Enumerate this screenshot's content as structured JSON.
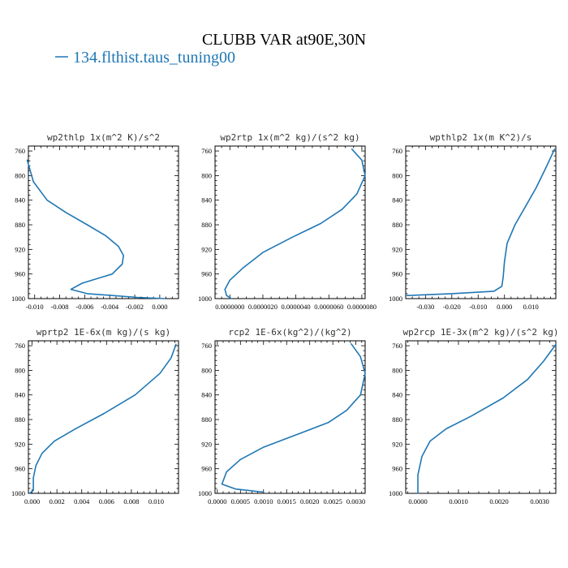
{
  "figure": {
    "title": "CLUBB VAR at90E,30N",
    "legend_label": "134.flthist.taus_tuning00",
    "series_color": "#1f77b4"
  },
  "chart_data": [
    {
      "type": "line",
      "title": "wp2thlp  1x(m^2 K)/s^2",
      "x_ticks": [
        "-0.010",
        "-0.008",
        "-0.006",
        "-0.004",
        "-0.002",
        "0.000"
      ],
      "x_tick_values": [
        -0.01,
        -0.008,
        -0.006,
        -0.004,
        -0.002,
        0.0
      ],
      "xlim": [
        -0.0105,
        0.0015
      ],
      "y_ticks": [
        "760",
        "800",
        "840",
        "880",
        "920",
        "960",
        "1000"
      ],
      "ylim": [
        1000,
        752
      ],
      "series": [
        {
          "x": [
            0.0004,
            -0.0018,
            -0.0058,
            -0.0071,
            -0.0062,
            -0.0038,
            -0.003,
            -0.0029,
            -0.0033,
            -0.0043,
            -0.0058,
            -0.0075,
            -0.009,
            -0.0101,
            -0.0106
          ],
          "y": [
            1000,
            998,
            992,
            985,
            975,
            960,
            944,
            930,
            915,
            898,
            880,
            860,
            840,
            810,
            775
          ]
        }
      ]
    },
    {
      "type": "line",
      "title": "wp2rtp  1x(m^2 kg)/(s^2 kg)",
      "x_ticks": [
        "0.0000000",
        "0.0000020",
        "0.0000040",
        "0.0000060",
        "0.0000080"
      ],
      "x_tick_values": [
        0.0,
        2e-06,
        4e-06,
        6e-06,
        8e-06
      ],
      "xlim": [
        -9e-07,
        8.2e-06
      ],
      "y_ticks": [
        "760",
        "800",
        "840",
        "880",
        "920",
        "960",
        "1000"
      ],
      "ylim": [
        1000,
        752
      ],
      "series": [
        {
          "x": [
            1e-07,
            -2e-07,
            -3e-07,
            0.0,
            8e-07,
            2e-06,
            3.8e-06,
            5.5e-06,
            6.8e-06,
            7.7e-06,
            8.2e-06,
            8e-06,
            7.4e-06
          ],
          "y": [
            1000,
            995,
            985,
            970,
            950,
            925,
            900,
            878,
            855,
            830,
            800,
            775,
            757
          ]
        }
      ]
    },
    {
      "type": "line",
      "title": "wpthlp2  1x(m K^2)/s",
      "x_ticks": [
        "-0.030",
        "-0.020",
        "-0.010",
        "0.000",
        "0.010"
      ],
      "x_tick_values": [
        -0.03,
        -0.02,
        -0.01,
        0.0,
        0.01
      ],
      "xlim": [
        -0.0375,
        0.0195
      ],
      "y_ticks": [
        "760",
        "800",
        "840",
        "880",
        "920",
        "960",
        "1000"
      ],
      "ylim": [
        1000,
        752
      ],
      "series": [
        {
          "x": [
            -0.037,
            -0.02,
            -0.004,
            -0.001,
            -0.0005,
            0.0,
            0.001,
            0.004,
            0.008,
            0.012,
            0.016,
            0.019
          ],
          "y": [
            995,
            992,
            988,
            980,
            965,
            940,
            910,
            880,
            850,
            820,
            785,
            757
          ]
        }
      ]
    },
    {
      "type": "line",
      "title": "wprtp2  1E-6x(m kg)/(s kg)",
      "x_ticks": [
        "0.000",
        "0.002",
        "0.004",
        "0.006",
        "0.008",
        "0.010"
      ],
      "x_tick_values": [
        0.0,
        0.002,
        0.004,
        0.006,
        0.008,
        0.01
      ],
      "xlim": [
        -0.0003,
        0.0118
      ],
      "y_ticks": [
        "760",
        "800",
        "840",
        "880",
        "920",
        "960",
        "1000"
      ],
      "ylim": [
        1000,
        752
      ],
      "series": [
        {
          "x": [
            -0.0002,
            0.0001,
            0.0001,
            0.0003,
            0.0008,
            0.0018,
            0.0035,
            0.0058,
            0.0083,
            0.0103,
            0.0112,
            0.0116
          ],
          "y": [
            1000,
            995,
            975,
            955,
            935,
            915,
            895,
            870,
            840,
            805,
            780,
            758
          ]
        }
      ]
    },
    {
      "type": "line",
      "title": "rcp2  1E-6x(kg^2)/(kg^2)",
      "x_ticks": [
        "0.0000",
        "0.0005",
        "0.0010",
        "0.0015",
        "0.0020",
        "0.0025",
        "0.0030"
      ],
      "x_tick_values": [
        0.0,
        0.0005,
        0.001,
        0.0015,
        0.002,
        0.0025,
        0.003
      ],
      "xlim": [
        -5e-05,
        0.0032
      ],
      "y_ticks": [
        "760",
        "800",
        "840",
        "880",
        "920",
        "960",
        "1000"
      ],
      "ylim": [
        1000,
        752
      ],
      "series": [
        {
          "x": [
            0.001,
            0.0004,
            0.0001,
            0.0002,
            0.0005,
            0.001,
            0.0017,
            0.0024,
            0.0028,
            0.0031,
            0.0032,
            0.0031,
            0.0029
          ],
          "y": [
            998,
            993,
            985,
            965,
            945,
            925,
            905,
            885,
            865,
            840,
            805,
            778,
            757
          ]
        }
      ]
    },
    {
      "type": "line",
      "title": "wp2rcp  1E-3x(m^2 kg)/(s^2 kg)",
      "x_ticks": [
        "0.0000",
        "0.0010",
        "0.0020",
        "0.0030"
      ],
      "x_tick_values": [
        0.0,
        0.001,
        0.002,
        0.003
      ],
      "xlim": [
        -0.0003,
        0.0034
      ],
      "y_ticks": [
        "760",
        "800",
        "840",
        "880",
        "920",
        "960",
        "1000"
      ],
      "ylim": [
        1000,
        752
      ],
      "series": [
        {
          "x": [
            0.0,
            0.0,
            0.0001,
            0.0003,
            0.0007,
            0.0013,
            0.0021,
            0.0027,
            0.0031,
            0.0034
          ],
          "y": [
            1000,
            970,
            940,
            915,
            895,
            875,
            845,
            815,
            785,
            758
          ]
        }
      ]
    }
  ]
}
